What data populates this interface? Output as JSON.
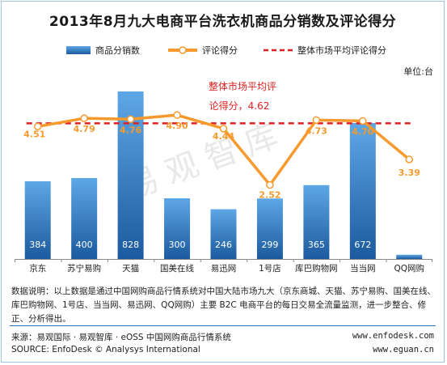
{
  "title": "2013年8月九大电商平台洗衣机商品分销数及评论得分",
  "unit_label": "单位:台",
  "watermark": "易观智库",
  "legend": {
    "bar_label": "商品分销数",
    "line_label": "评论得分",
    "avg_label": "整体市场平均评论得分"
  },
  "annotation": {
    "line1": "整体市场平均评",
    "line2": "论得分，4.62"
  },
  "note": "数据说明：以上数据是通过中国网购商品行情系统对中国大陆市场九大（京东商城、天猫、苏宁易购、国美在线、库巴购物网、1号店、当当网、易迅网、QQ网购）主要 B2C 电商平台的每日交易全流量监测，进一步整合、修正、分析得出。",
  "source": {
    "cn": "来源：易观国际 · 易观智库 · eOSS 中国网购商品行情系统",
    "en": "SOURCE: EnfoDesk © Analysys International",
    "url1": "www.enfodesk.com",
    "url2": "www.eguan.cn"
  },
  "colors": {
    "bar_top": "#5ea7e6",
    "bar_bottom": "#1b5a9e",
    "line": "#f79a2e",
    "avg": "#e02020",
    "annotation": "#e02020"
  },
  "chart_data": {
    "type": "bar",
    "categories": [
      "京东",
      "苏宁易购",
      "天猫",
      "国美在线",
      "易迅网",
      "1号店",
      "库巴购物网",
      "当当网",
      "QQ网购"
    ],
    "series": [
      {
        "name": "商品分销数",
        "type": "bar",
        "values": [
          384,
          400,
          828,
          300,
          246,
          299,
          365,
          672,
          21
        ]
      },
      {
        "name": "评论得分",
        "type": "line",
        "values": [
          4.51,
          4.79,
          4.76,
          4.9,
          4.44,
          2.52,
          4.73,
          4.7,
          3.39
        ]
      }
    ],
    "reference_line": {
      "name": "整体市场平均评论得分",
      "value": 4.62
    },
    "ylabel": "单位:台",
    "ylim_bar": [
      0,
      900
    ],
    "ylim_line": [
      0,
      6.2
    ]
  }
}
